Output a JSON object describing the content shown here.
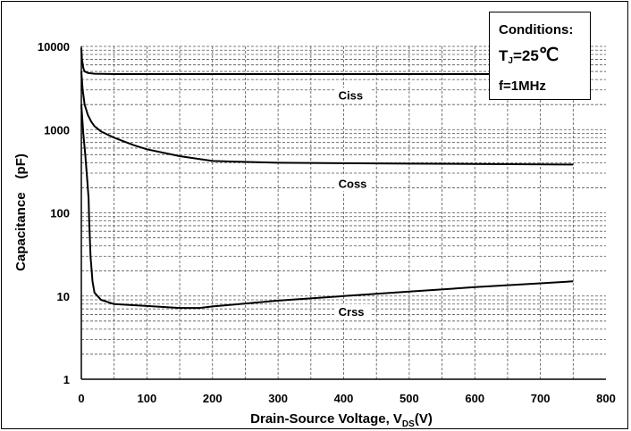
{
  "conditions": {
    "title": "Conditions:",
    "tj_label": "T",
    "tj_sub": "J",
    "tj_value": "=25",
    "tj_unit": "℃",
    "freq": "f=1MHz"
  },
  "chart_data": {
    "type": "line",
    "title": "",
    "xlabel_main": "Drain-Source Voltage, V",
    "xlabel_sub": "DS",
    "xlabel_unit": "(V)",
    "ylabel": "Capacitance　(pF)",
    "xlim": [
      0,
      800
    ],
    "ylim": [
      1,
      10000
    ],
    "yscale": "log",
    "xticks": [
      "0",
      "100",
      "200",
      "300",
      "400",
      "500",
      "600",
      "700",
      "800"
    ],
    "yticks": [
      "1",
      "10",
      "100",
      "1000",
      "10000"
    ],
    "grid": "dashed",
    "series": [
      {
        "name": "Ciss",
        "x": [
          0,
          1,
          3,
          5,
          10,
          20,
          50,
          100,
          200,
          400,
          750
        ],
        "y": [
          9500,
          7000,
          5500,
          5000,
          4800,
          4700,
          4650,
          4650,
          4650,
          4650,
          4650
        ]
      },
      {
        "name": "Coss",
        "x": [
          0,
          2,
          5,
          10,
          15,
          20,
          30,
          50,
          80,
          100,
          150,
          200,
          300,
          500,
          750
        ],
        "y": [
          5000,
          3000,
          2000,
          1500,
          1250,
          1100,
          950,
          800,
          650,
          580,
          480,
          420,
          400,
          390,
          380
        ]
      },
      {
        "name": "Crss",
        "x": [
          0,
          3,
          6,
          9,
          11,
          12,
          14,
          17,
          20,
          30,
          50,
          100,
          150,
          180,
          200,
          300,
          400,
          500,
          600,
          700,
          750
        ],
        "y": [
          2000,
          900,
          500,
          250,
          150,
          80,
          30,
          15,
          11,
          9,
          8,
          7.6,
          7.2,
          7.2,
          7.5,
          8.8,
          10,
          11.3,
          12.8,
          14.2,
          15
        ]
      }
    ]
  }
}
